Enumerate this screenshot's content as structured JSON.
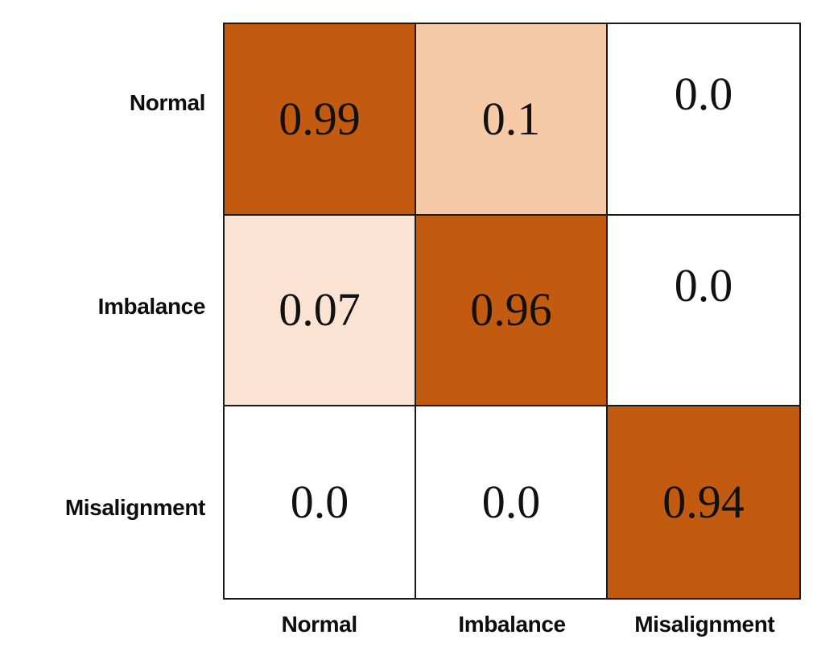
{
  "chart_data": {
    "type": "heatmap",
    "title": "",
    "xlabel": "",
    "ylabel": "",
    "rows": [
      "Normal",
      "Imbalance",
      "Misalignment"
    ],
    "columns": [
      "Normal",
      "Imbalance",
      "Misalignment"
    ],
    "values": [
      [
        0.99,
        0.1,
        0.0
      ],
      [
        0.07,
        0.96,
        0.0
      ],
      [
        0.0,
        0.0,
        0.94
      ]
    ],
    "value_range": [
      0,
      1
    ],
    "grid": "on",
    "legend": "none",
    "colormap_hint": "white-to-dark-orange"
  },
  "colors": {
    "dark_orange": "#c25a10",
    "peach": "#f6caa7",
    "pale_peach": "#fae3d3",
    "white": "#ffffff",
    "grid_line": "#1a1a1a",
    "text": "#111111"
  },
  "matrix": {
    "row_labels": [
      "Normal",
      "Imbalance",
      "Misalignment"
    ],
    "col_labels": [
      "Normal",
      "Imbalance",
      "Misalignment"
    ],
    "cells": [
      {
        "text": "0.99",
        "bg": "#c25a10"
      },
      {
        "text": "0.1",
        "bg": "#f6caa7"
      },
      {
        "text": "0.0",
        "bg": "#ffffff"
      },
      {
        "text": "0.07",
        "bg": "#fae3d3"
      },
      {
        "text": "0.96",
        "bg": "#c25a10"
      },
      {
        "text": "0.0",
        "bg": "#ffffff"
      },
      {
        "text": "0.0",
        "bg": "#ffffff"
      },
      {
        "text": "0.0",
        "bg": "#ffffff"
      },
      {
        "text": "0.94",
        "bg": "#c25a10"
      }
    ]
  }
}
